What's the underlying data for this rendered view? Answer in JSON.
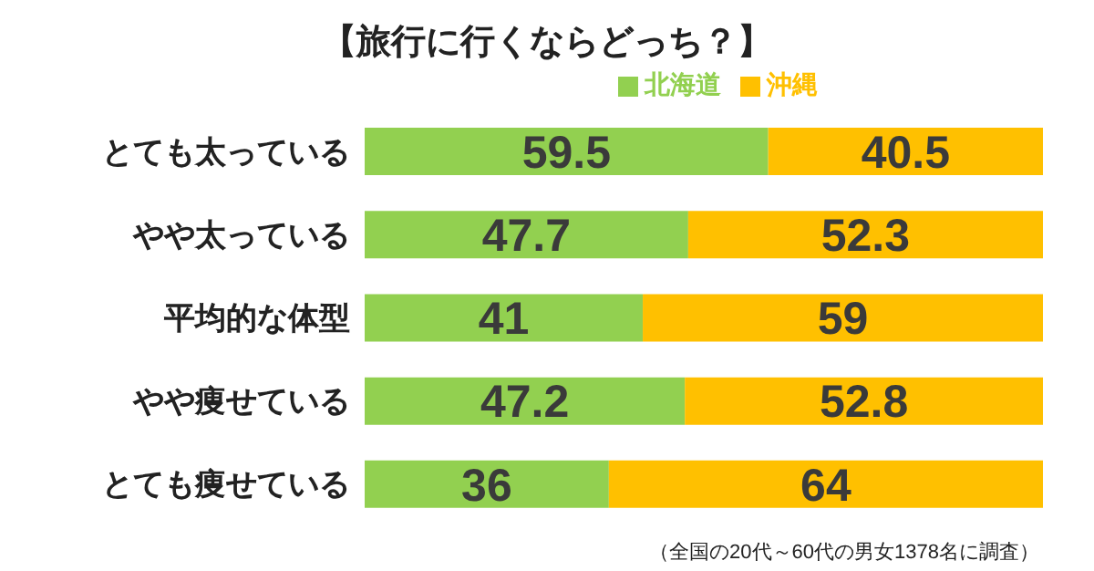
{
  "chart_data": {
    "type": "bar",
    "title": "【旅行に行くならどっち？】",
    "orientation": "horizontal",
    "stacked": true,
    "data_labels": true,
    "legend": "top",
    "grid": false,
    "categories": [
      "とても太っている",
      "やや太っている",
      "平均的な体型",
      "やや痩せている",
      "とても痩せている"
    ],
    "series": [
      {
        "name": "北海道",
        "color": "#92d050",
        "values": [
          59.5,
          47.7,
          41,
          47.2,
          36
        ]
      },
      {
        "name": "沖縄",
        "color": "#ffc000",
        "values": [
          40.5,
          52.3,
          59,
          52.8,
          64
        ]
      }
    ],
    "annotations": [
      "（全国の20代～60代の男女1378名に調査）"
    ]
  }
}
